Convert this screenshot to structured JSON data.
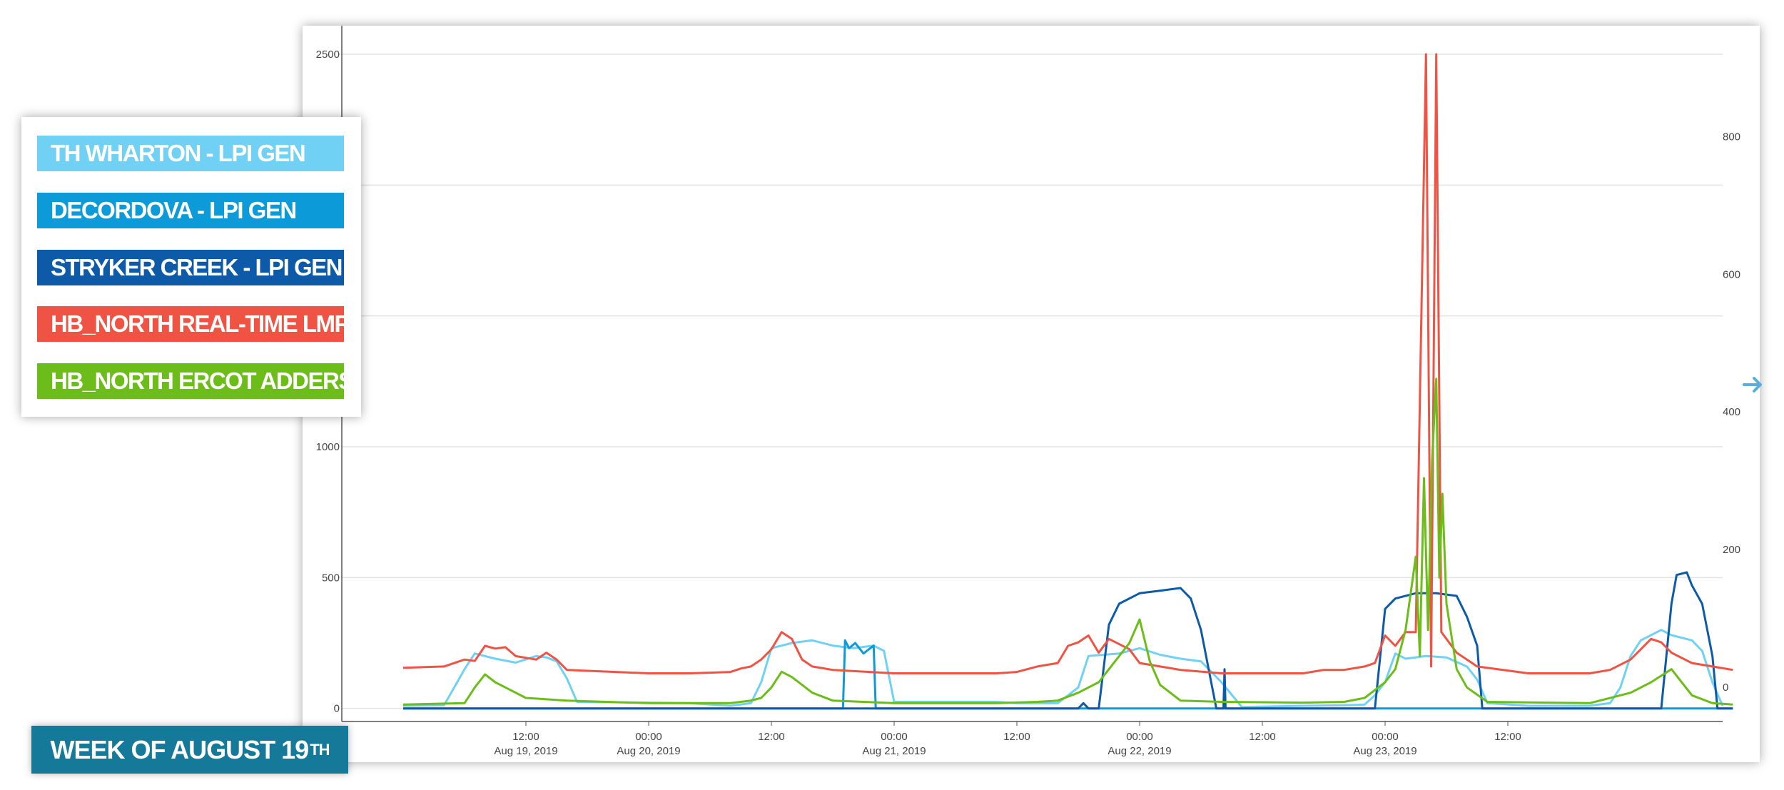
{
  "legend": {
    "items": [
      {
        "label": "TH WHARTON - LPI GEN",
        "color": "#70d1f4"
      },
      {
        "label": "DECORDOVA - LPI GEN",
        "color": "#0c9ad8"
      },
      {
        "label": "STRYKER CREEK - LPI GEN",
        "color": "#0d5aa9"
      },
      {
        "label": "HB_NORTH REAL-TIME LMP",
        "color": "#ef5343"
      },
      {
        "label": "HB_NORTH ERCOT ADDERS",
        "color": "#6cbd19"
      }
    ]
  },
  "banner": {
    "text": "WEEK OF AUGUST 19",
    "suffix": "TH"
  },
  "nav": {
    "arrow_icon": "arrow-right-icon",
    "arrow_color": "#5aaedb"
  },
  "chart_data": {
    "type": "line",
    "title": "",
    "xlabel": "",
    "x_range": [
      "Aug 19, 2019 00:00",
      "Aug 23, 2019 22:00"
    ],
    "x_ticks": [
      {
        "label": "12:00",
        "sublabel": "Aug 19, 2019",
        "hour": 12
      },
      {
        "label": "00:00",
        "sublabel": "Aug 20, 2019",
        "hour": 24
      },
      {
        "label": "12:00",
        "sublabel": "",
        "hour": 36
      },
      {
        "label": "00:00",
        "sublabel": "Aug 21, 2019",
        "hour": 48
      },
      {
        "label": "12:00",
        "sublabel": "",
        "hour": 60
      },
      {
        "label": "00:00",
        "sublabel": "Aug 22, 2019",
        "hour": 72
      },
      {
        "label": "12:00",
        "sublabel": "",
        "hour": 84
      },
      {
        "label": "00:00",
        "sublabel": "Aug 23, 2019",
        "hour": 96
      },
      {
        "label": "12:00",
        "sublabel": "",
        "hour": 108
      }
    ],
    "y_left": {
      "ylim": [
        -50,
        2500
      ],
      "ticks": [
        0,
        500,
        1000,
        2500
      ],
      "gridlines": [
        0,
        500,
        1000,
        1500,
        2000,
        2500
      ]
    },
    "y_right": {
      "ylim": [
        -50,
        920
      ],
      "ticks": [
        0,
        200,
        400,
        600,
        800
      ]
    },
    "grid": true,
    "legend_position": "left",
    "series": [
      {
        "name": "TH WHARTON - LPI GEN",
        "axis": "left",
        "points": [
          [
            0,
            10
          ],
          [
            4,
            12
          ],
          [
            6,
            150
          ],
          [
            7,
            210
          ],
          [
            9,
            190
          ],
          [
            11,
            175
          ],
          [
            13,
            200
          ],
          [
            14,
            195
          ],
          [
            15,
            180
          ],
          [
            16,
            115
          ],
          [
            17,
            25
          ],
          [
            24,
            22
          ],
          [
            28,
            20
          ],
          [
            32,
            10
          ],
          [
            34,
            20
          ],
          [
            35,
            100
          ],
          [
            36,
            230
          ],
          [
            38,
            250
          ],
          [
            40,
            260
          ],
          [
            42,
            240
          ],
          [
            44,
            230
          ],
          [
            46,
            240
          ],
          [
            47,
            220
          ],
          [
            48,
            25
          ],
          [
            58,
            25
          ],
          [
            60,
            20
          ],
          [
            64,
            20
          ],
          [
            66,
            80
          ],
          [
            67,
            200
          ],
          [
            70,
            210
          ],
          [
            72,
            230
          ],
          [
            74,
            205
          ],
          [
            76,
            190
          ],
          [
            78,
            180
          ],
          [
            80,
            100
          ],
          [
            82,
            5
          ],
          [
            88,
            10
          ],
          [
            92,
            12
          ],
          [
            94,
            15
          ],
          [
            95,
            50
          ],
          [
            96,
            100
          ],
          [
            97,
            210
          ],
          [
            98,
            190
          ],
          [
            100,
            200
          ],
          [
            102,
            195
          ],
          [
            104,
            160
          ],
          [
            105,
            110
          ],
          [
            106,
            20
          ],
          [
            110,
            10
          ],
          [
            116,
            10
          ],
          [
            118,
            20
          ],
          [
            119,
            80
          ],
          [
            120,
            200
          ],
          [
            121,
            260
          ],
          [
            123,
            300
          ],
          [
            124,
            280
          ],
          [
            126,
            260
          ],
          [
            127,
            220
          ],
          [
            128,
            100
          ],
          [
            129,
            10
          ]
        ]
      },
      {
        "name": "DECORDOVA - LPI GEN",
        "axis": "left",
        "points": [
          [
            0,
            0
          ],
          [
            42,
            0
          ],
          [
            43,
            0
          ],
          [
            43.2,
            260
          ],
          [
            43.6,
            230
          ],
          [
            44.2,
            250
          ],
          [
            45,
            210
          ],
          [
            46,
            240
          ],
          [
            46.2,
            0
          ],
          [
            120,
            0
          ],
          [
            130,
            0
          ]
        ]
      },
      {
        "name": "STRYKER CREEK - LPI GEN",
        "axis": "left",
        "points": [
          [
            0,
            0
          ],
          [
            64,
            0
          ],
          [
            66,
            0
          ],
          [
            66.5,
            20
          ],
          [
            67,
            0
          ],
          [
            68,
            0
          ],
          [
            69,
            320
          ],
          [
            70,
            400
          ],
          [
            72,
            440
          ],
          [
            74,
            450
          ],
          [
            76,
            460
          ],
          [
            77,
            420
          ],
          [
            78,
            300
          ],
          [
            79,
            100
          ],
          [
            79.5,
            0
          ],
          [
            80.2,
            0
          ],
          [
            80.3,
            150
          ],
          [
            80.4,
            0
          ],
          [
            94,
            0
          ],
          [
            95,
            0
          ],
          [
            96,
            380
          ],
          [
            97,
            420
          ],
          [
            99,
            440
          ],
          [
            101,
            440
          ],
          [
            103,
            430
          ],
          [
            104,
            350
          ],
          [
            105,
            240
          ],
          [
            105.5,
            0
          ],
          [
            122,
            0
          ],
          [
            123,
            0
          ],
          [
            124,
            400
          ],
          [
            124.5,
            510
          ],
          [
            125.5,
            520
          ],
          [
            126,
            470
          ],
          [
            127,
            400
          ],
          [
            128,
            200
          ],
          [
            128.5,
            0
          ],
          [
            130,
            0
          ]
        ]
      },
      {
        "name": "HB_NORTH REAL-TIME LMP",
        "axis": "right",
        "points": [
          [
            0,
            28
          ],
          [
            4,
            30
          ],
          [
            6,
            40
          ],
          [
            7,
            38
          ],
          [
            8,
            60
          ],
          [
            9,
            56
          ],
          [
            10,
            58
          ],
          [
            11,
            45
          ],
          [
            13,
            40
          ],
          [
            14,
            50
          ],
          [
            15,
            40
          ],
          [
            16,
            25
          ],
          [
            24,
            20
          ],
          [
            28,
            20
          ],
          [
            32,
            22
          ],
          [
            33,
            27
          ],
          [
            34,
            30
          ],
          [
            35,
            40
          ],
          [
            36,
            55
          ],
          [
            37,
            80
          ],
          [
            38,
            70
          ],
          [
            39,
            40
          ],
          [
            40,
            30
          ],
          [
            42,
            25
          ],
          [
            48,
            20
          ],
          [
            58,
            20
          ],
          [
            60,
            22
          ],
          [
            62,
            30
          ],
          [
            64,
            35
          ],
          [
            65,
            60
          ],
          [
            66,
            65
          ],
          [
            67,
            75
          ],
          [
            68,
            50
          ],
          [
            69,
            70
          ],
          [
            71,
            55
          ],
          [
            72,
            35
          ],
          [
            74,
            30
          ],
          [
            76,
            25
          ],
          [
            80,
            20
          ],
          [
            88,
            20
          ],
          [
            90,
            25
          ],
          [
            92,
            25
          ],
          [
            94,
            30
          ],
          [
            95,
            35
          ],
          [
            96,
            75
          ],
          [
            97,
            60
          ],
          [
            98,
            80
          ],
          [
            99,
            80
          ],
          [
            100,
            920
          ],
          [
            100.5,
            30
          ],
          [
            101,
            920
          ],
          [
            101.5,
            80
          ],
          [
            102,
            70
          ],
          [
            103,
            50
          ],
          [
            104,
            40
          ],
          [
            105,
            30
          ],
          [
            110,
            20
          ],
          [
            116,
            20
          ],
          [
            118,
            25
          ],
          [
            120,
            40
          ],
          [
            122,
            70
          ],
          [
            123,
            65
          ],
          [
            124,
            50
          ],
          [
            126,
            35
          ],
          [
            128,
            30
          ],
          [
            130,
            25
          ]
        ]
      },
      {
        "name": "HB_NORTH ERCOT ADDERS",
        "axis": "left",
        "points": [
          [
            0,
            15
          ],
          [
            6,
            20
          ],
          [
            7,
            80
          ],
          [
            8,
            130
          ],
          [
            9,
            100
          ],
          [
            10,
            80
          ],
          [
            12,
            40
          ],
          [
            16,
            30
          ],
          [
            24,
            20
          ],
          [
            32,
            20
          ],
          [
            34,
            30
          ],
          [
            35,
            40
          ],
          [
            36,
            80
          ],
          [
            37,
            140
          ],
          [
            38,
            120
          ],
          [
            40,
            60
          ],
          [
            42,
            30
          ],
          [
            48,
            20
          ],
          [
            58,
            20
          ],
          [
            62,
            25
          ],
          [
            64,
            30
          ],
          [
            66,
            60
          ],
          [
            67,
            80
          ],
          [
            68,
            100
          ],
          [
            69,
            150
          ],
          [
            71,
            250
          ],
          [
            72,
            340
          ],
          [
            73,
            180
          ],
          [
            74,
            90
          ],
          [
            76,
            30
          ],
          [
            80,
            25
          ],
          [
            88,
            22
          ],
          [
            92,
            25
          ],
          [
            94,
            40
          ],
          [
            96,
            100
          ],
          [
            97,
            150
          ],
          [
            98,
            300
          ],
          [
            99,
            580
          ],
          [
            99.4,
            200
          ],
          [
            99.8,
            880
          ],
          [
            100.2,
            300
          ],
          [
            100.6,
            950
          ],
          [
            101,
            1260
          ],
          [
            101.3,
            500
          ],
          [
            101.6,
            820
          ],
          [
            102,
            400
          ],
          [
            103,
            150
          ],
          [
            104,
            80
          ],
          [
            106,
            25
          ],
          [
            116,
            20
          ],
          [
            120,
            60
          ],
          [
            122,
            100
          ],
          [
            124,
            150
          ],
          [
            126,
            50
          ],
          [
            128,
            20
          ],
          [
            130,
            15
          ]
        ]
      }
    ]
  }
}
